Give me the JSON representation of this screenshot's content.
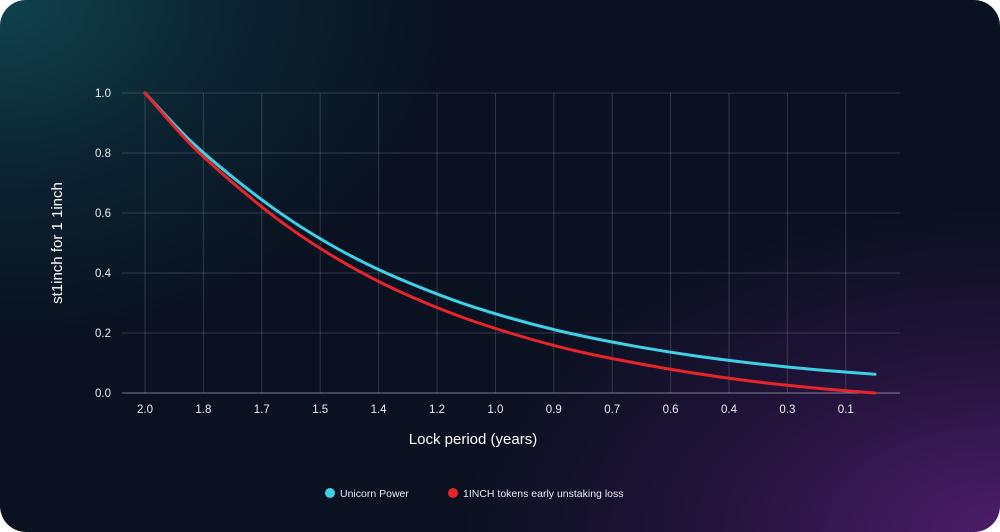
{
  "chart_data": {
    "type": "line",
    "title": "",
    "xlabel": "Lock period (years)",
    "ylabel": "st1inch for 1 1inch",
    "x_tick_labels": [
      "2.0",
      "1.8",
      "1.7",
      "1.5",
      "1.4",
      "1.2",
      "1.0",
      "0.9",
      "0.7",
      "0.6",
      "0.4",
      "0.3",
      "0.1"
    ],
    "y_tick_labels": [
      "0.0",
      "0.2",
      "0.4",
      "0.6",
      "0.8",
      "1.0"
    ],
    "x_range": [
      2.0,
      0.0
    ],
    "ylim": [
      0.0,
      1.0
    ],
    "grid": true,
    "legend_position": "bottom-center",
    "series": [
      {
        "name": "Unicorn Power",
        "color": "#3fd0e6",
        "x": [
          2.0,
          1.875,
          1.75,
          1.625,
          1.5,
          1.375,
          1.25,
          1.125,
          1.0,
          0.875,
          0.75,
          0.625,
          0.5,
          0.375,
          0.25,
          0.125,
          0.0
        ],
        "y": [
          1.0,
          0.84,
          0.71,
          0.596,
          0.5,
          0.42,
          0.354,
          0.297,
          0.25,
          0.21,
          0.177,
          0.149,
          0.125,
          0.105,
          0.088,
          0.074,
          0.0625
        ]
      },
      {
        "name": "1INCH tokens early unstaking loss",
        "color": "#e8242b",
        "x": [
          2.0,
          1.875,
          1.75,
          1.625,
          1.5,
          1.375,
          1.25,
          1.125,
          1.0,
          0.875,
          0.75,
          0.625,
          0.5,
          0.375,
          0.25,
          0.125,
          0.0
        ],
        "y": [
          1.0,
          0.829,
          0.691,
          0.569,
          0.467,
          0.381,
          0.31,
          0.25,
          0.2,
          0.157,
          0.122,
          0.093,
          0.067,
          0.045,
          0.027,
          0.012,
          0.0
        ]
      }
    ]
  }
}
